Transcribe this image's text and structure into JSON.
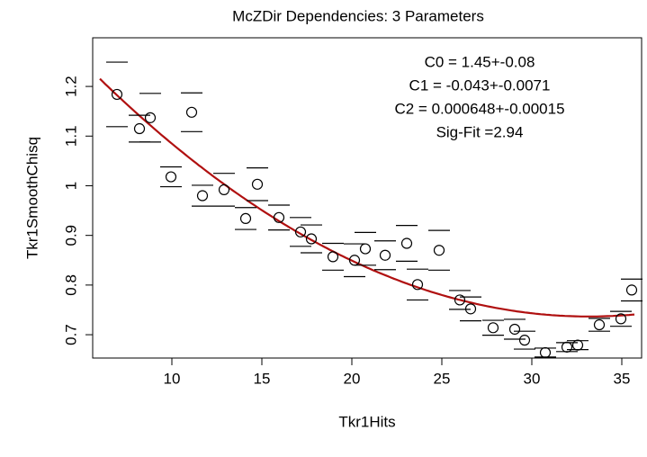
{
  "chart_data": {
    "type": "scatter",
    "title": "McZDir Dependencies: 3 Parameters",
    "xlabel": "Tkr1Hits",
    "ylabel": "Tkr1SmoothChisq",
    "x": [
      6.95,
      8.2,
      8.8,
      9.95,
      11.1,
      11.7,
      12.9,
      14.1,
      14.75,
      15.95,
      17.15,
      17.75,
      18.95,
      20.15,
      20.75,
      21.85,
      23.05,
      23.65,
      24.85,
      26.0,
      26.6,
      27.85,
      29.05,
      29.6,
      30.75,
      31.95,
      32.55,
      33.75,
      34.95,
      35.55
    ],
    "values": [
      1.184,
      1.115,
      1.137,
      1.018,
      1.148,
      0.98,
      0.992,
      0.934,
      1.003,
      0.936,
      0.907,
      0.893,
      0.857,
      0.85,
      0.873,
      0.86,
      0.884,
      0.801,
      0.87,
      0.77,
      0.752,
      0.714,
      0.711,
      0.689,
      0.664,
      0.675,
      0.679,
      0.72,
      0.732,
      0.79
    ],
    "errors": [
      0.065,
      0.027,
      0.049,
      0.02,
      0.039,
      0.021,
      0.033,
      0.022,
      0.033,
      0.025,
      0.029,
      0.028,
      0.027,
      0.033,
      0.033,
      0.029,
      0.036,
      0.031,
      0.04,
      0.019,
      0.024,
      0.015,
      0.02,
      0.018,
      0.009,
      0.009,
      0.009,
      0.013,
      0.015,
      0.022
    ],
    "color": "#000000",
    "fit": {
      "color": "#b01010",
      "x_range": [
        6.0,
        35.7
      ],
      "terms": [
        {
          "label": "C0 = 1.45+-0.08",
          "value": 1.45,
          "error": 0.08
        },
        {
          "label": "C1 = -0.043+-0.0071",
          "value": -0.043,
          "error": 0.0071
        },
        {
          "label": "C2 = 0.000648+-0.00015",
          "value": 0.000648,
          "error": 0.00015
        }
      ],
      "annotation": "Sig-Fit =2.94"
    },
    "xlim": [
      5.6,
      36.1
    ],
    "xticks": [
      10,
      15,
      20,
      25,
      30,
      35
    ],
    "ylim": [
      0.653,
      1.298
    ],
    "yticks": [
      0.7,
      0.8,
      0.9,
      1.0,
      1.1,
      1.2
    ],
    "grid": false
  }
}
